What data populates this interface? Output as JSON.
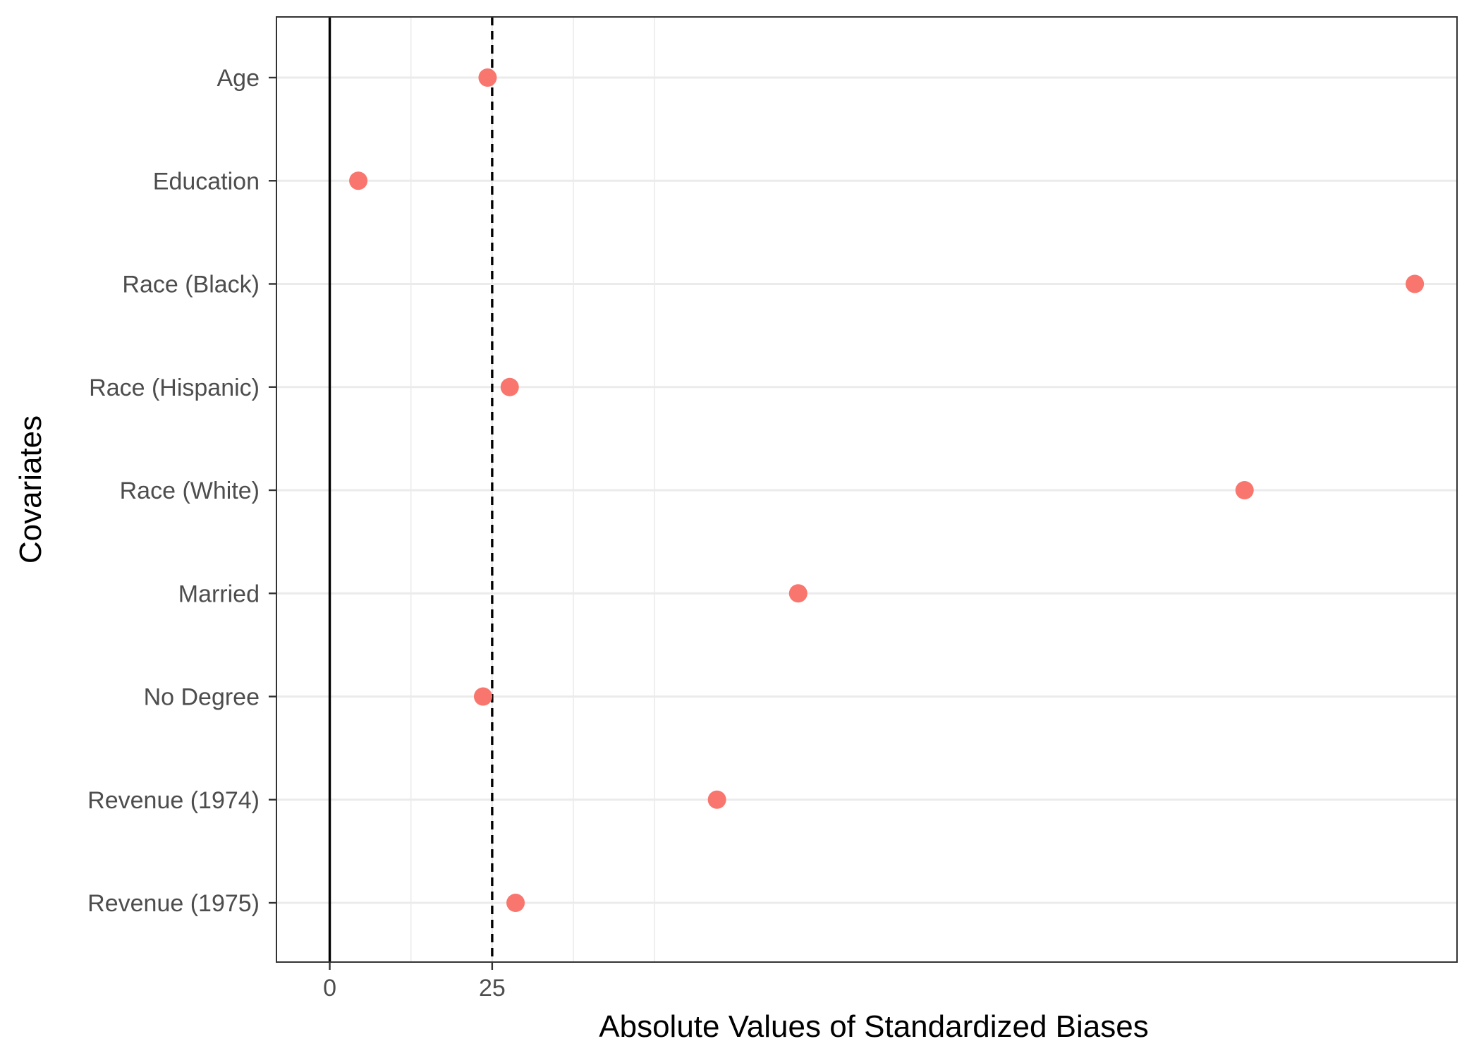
{
  "chart_data": {
    "type": "scatter",
    "title": "",
    "xlabel": "Absolute Values of Standardized Biases",
    "ylabel": "Covariates",
    "xlim": [
      -8.2,
      173.5
    ],
    "x_ticks": [
      0,
      25
    ],
    "x_tick_labels": [
      "0",
      "25"
    ],
    "x_minor_gridlines": [
      12.5,
      37.5,
      50
    ],
    "reference_lines": [
      {
        "x": 0,
        "style": "solid"
      },
      {
        "x": 25,
        "style": "dashed"
      }
    ],
    "grid": true,
    "legend": "none",
    "categories": [
      "Age",
      "Education",
      "Race (Black)",
      "Race (Hispanic)",
      "Race (White)",
      "Married",
      "No Degree",
      "Revenue (1974)",
      "Revenue (1975)"
    ],
    "values": [
      24.3,
      4.4,
      167.0,
      27.7,
      140.8,
      72.1,
      23.6,
      59.6,
      28.6
    ],
    "point_color": "#F8766D"
  }
}
